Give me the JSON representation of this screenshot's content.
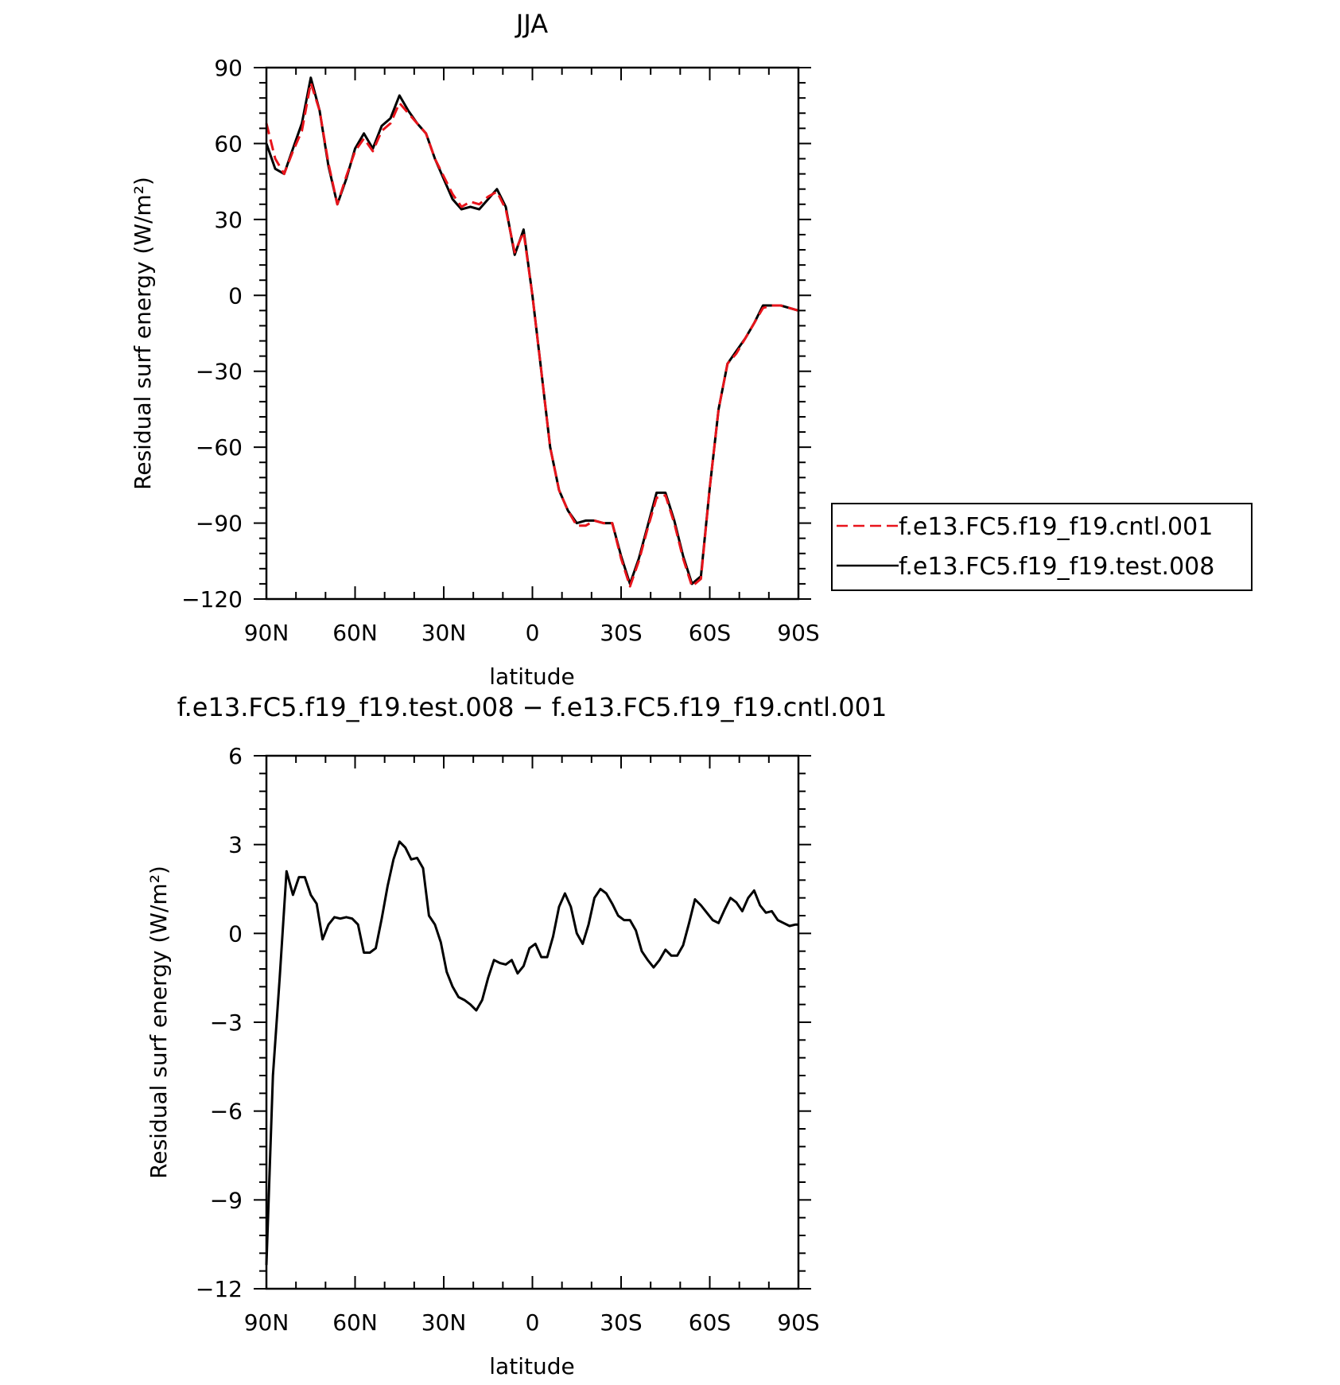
{
  "chart_data": [
    {
      "type": "line",
      "title": "JJA",
      "xlabel": "latitude",
      "ylabel": "Residual surf energy (W/m²)",
      "x_ticks": [
        90,
        60,
        30,
        0,
        -30,
        -60,
        -90
      ],
      "x_tick_labels": [
        "90N",
        "60N",
        "30N",
        "0",
        "30S",
        "60S",
        "90S"
      ],
      "xlim": [
        90,
        -90
      ],
      "ylim": [
        -120,
        90
      ],
      "y_ticks": [
        90,
        60,
        30,
        0,
        -30,
        -60,
        -90,
        -120
      ],
      "y_tick_labels": [
        "90",
        "60",
        "30",
        "0",
        "−30",
        "−60",
        "−90",
        "−120"
      ],
      "legend_placement": "right",
      "series": [
        {
          "name": "f.e13.FC5.f19_f19.cntl.001",
          "color": "#e8141b",
          "dash": "dashed",
          "x": [
            90,
            87,
            84,
            81,
            78,
            75,
            72,
            69,
            66,
            63,
            60,
            57,
            54,
            51,
            48,
            45,
            42,
            39,
            36,
            33,
            30,
            27,
            24,
            21,
            18,
            15,
            12,
            9,
            6,
            3,
            0,
            -3,
            -6,
            -9,
            -12,
            -15,
            -18,
            -21,
            -24,
            -27,
            -30,
            -33,
            -36,
            -39,
            -42,
            -45,
            -48,
            -51,
            -54,
            -57,
            -60,
            -63,
            -66,
            -69,
            -72,
            -75,
            -78,
            -81,
            -84,
            -87,
            -90
          ],
          "y": [
            68,
            54,
            48,
            57,
            65,
            84,
            73,
            52,
            36,
            47,
            57,
            62,
            57,
            65,
            68,
            76,
            72,
            68,
            64,
            54,
            47,
            40,
            35,
            37,
            36,
            39,
            41,
            34,
            17,
            25,
            0,
            -30,
            -60,
            -77,
            -85,
            -91,
            -91,
            -89,
            -90,
            -90,
            -104,
            -115,
            -105,
            -92,
            -80,
            -79,
            -90,
            -104,
            -115,
            -112,
            -76,
            -45,
            -27,
            -23,
            -17,
            -11,
            -5,
            -4,
            -4,
            -5,
            -6
          ]
        },
        {
          "name": "f.e13.FC5.f19_f19.test.008",
          "color": "#000000",
          "dash": "solid",
          "x": [
            90,
            87,
            84,
            81,
            78,
            75,
            72,
            69,
            66,
            63,
            60,
            57,
            54,
            51,
            48,
            45,
            42,
            39,
            36,
            33,
            30,
            27,
            24,
            21,
            18,
            15,
            12,
            9,
            6,
            3,
            0,
            -3,
            -6,
            -9,
            -12,
            -15,
            -18,
            -21,
            -24,
            -27,
            -30,
            -33,
            -36,
            -39,
            -42,
            -45,
            -48,
            -51,
            -54,
            -57,
            -60,
            -63,
            -66,
            -69,
            -72,
            -75,
            -78,
            -81,
            -84,
            -87,
            -90
          ],
          "y": [
            60,
            50,
            48,
            58,
            68,
            86,
            73,
            51,
            36,
            46,
            58,
            64,
            58,
            67,
            70,
            79,
            73,
            68,
            64,
            54,
            46,
            38,
            34,
            35,
            34,
            38,
            42,
            35,
            16,
            26,
            0,
            -30,
            -60,
            -77,
            -85,
            -90,
            -89,
            -89,
            -90,
            -90,
            -103,
            -114,
            -104,
            -91,
            -78,
            -78,
            -89,
            -103,
            -114,
            -111,
            -76,
            -45,
            -27,
            -22,
            -17,
            -11,
            -4,
            -4,
            -4,
            -5,
            -6
          ]
        }
      ]
    },
    {
      "type": "line",
      "title": "f.e13.FC5.f19_f19.test.008 − f.e13.FC5.f19_f19.cntl.001",
      "xlabel": "latitude",
      "ylabel": "Residual surf energy (W/m²)",
      "x_ticks": [
        90,
        60,
        30,
        0,
        -30,
        -60,
        -90
      ],
      "x_tick_labels": [
        "90N",
        "60N",
        "30N",
        "0",
        "30S",
        "60S",
        "90S"
      ],
      "xlim": [
        90,
        -90
      ],
      "ylim": [
        -12,
        6
      ],
      "y_ticks": [
        6,
        3,
        0,
        -3,
        -6,
        -9,
        -12
      ],
      "y_tick_labels": [
        "6",
        "3",
        "0",
        "−3",
        "−6",
        "−9",
        "−12"
      ],
      "series": [
        {
          "color": "#000000",
          "dash": "solid",
          "x": [
            90,
            87.8,
            85.5,
            83.2,
            81,
            79,
            77,
            75,
            73,
            71,
            69,
            67,
            65,
            63,
            61,
            59,
            57,
            55,
            53,
            51,
            49,
            47,
            45,
            43,
            41,
            39,
            37,
            35,
            33,
            31,
            29,
            27,
            25,
            23,
            21,
            19,
            17,
            15,
            13,
            11,
            9,
            7,
            5,
            3,
            1,
            -1,
            -3,
            -5,
            -7,
            -9,
            -11,
            -13,
            -15,
            -17,
            -19,
            -21,
            -23,
            -25,
            -27,
            -29,
            -31,
            -33,
            -35,
            -37,
            -39,
            -41,
            -43,
            -45,
            -47,
            -49,
            -51,
            -53,
            -55,
            -57,
            -59,
            -61,
            -63,
            -65,
            -67,
            -69,
            -71,
            -73,
            -75,
            -77,
            -79,
            -81,
            -83,
            -85,
            -87,
            -89,
            -90
          ],
          "y": [
            -11.2,
            -4.8,
            -1.5,
            2.1,
            1.3,
            1.9,
            1.9,
            1.3,
            1.0,
            -0.2,
            0.3,
            0.55,
            0.5,
            0.55,
            0.5,
            0.3,
            -0.65,
            -0.65,
            -0.5,
            0.5,
            1.6,
            2.5,
            3.1,
            2.9,
            2.5,
            2.55,
            2.2,
            0.6,
            0.3,
            -0.3,
            -1.3,
            -1.8,
            -2.15,
            -2.25,
            -2.4,
            -2.6,
            -2.25,
            -1.5,
            -0.9,
            -1.0,
            -1.05,
            -0.9,
            -1.35,
            -1.1,
            -0.5,
            -0.35,
            -0.8,
            -0.8,
            -0.1,
            0.9,
            1.35,
            0.9,
            0.0,
            -0.35,
            0.3,
            1.2,
            1.5,
            1.35,
            1.0,
            0.6,
            0.45,
            0.45,
            0.1,
            -0.6,
            -0.9,
            -1.15,
            -0.9,
            -0.55,
            -0.75,
            -0.75,
            -0.4,
            0.35,
            1.15,
            0.95,
            0.7,
            0.45,
            0.35,
            0.8,
            1.2,
            1.05,
            0.75,
            1.2,
            1.45,
            0.95,
            0.7,
            0.75,
            0.45,
            0.35,
            0.25,
            0.3,
            0.3
          ]
        }
      ]
    }
  ]
}
